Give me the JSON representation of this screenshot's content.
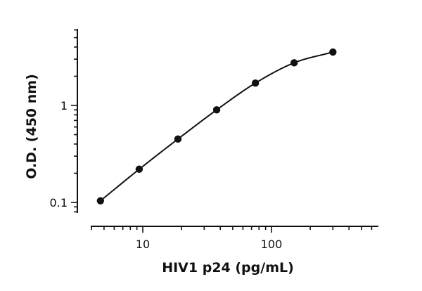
{
  "chart_data": {
    "type": "scatter",
    "title": "",
    "xlabel": "HIV1 p24 (pg/mL)",
    "ylabel": "O.D. (450 nm)",
    "x_scale": "log",
    "y_scale": "log",
    "xlim": [
      3.5,
      700
    ],
    "ylim": [
      0.065,
      6.3
    ],
    "x_ticks": [
      10,
      100
    ],
    "x_tick_labels": [
      "10",
      "100"
    ],
    "y_ticks": [
      0.1,
      1
    ],
    "y_tick_labels": [
      "0.1",
      "1"
    ],
    "grid": false,
    "legend": "none",
    "series": [
      {
        "x": [
          4.69,
          9.38,
          18.75,
          37.5,
          75,
          150,
          300
        ],
        "y": [
          0.104,
          0.22,
          0.45,
          0.9,
          1.7,
          2.75,
          3.55
        ],
        "marker": "filled-circle",
        "fit_line": "smooth-curve",
        "color": "#111111"
      }
    ]
  }
}
